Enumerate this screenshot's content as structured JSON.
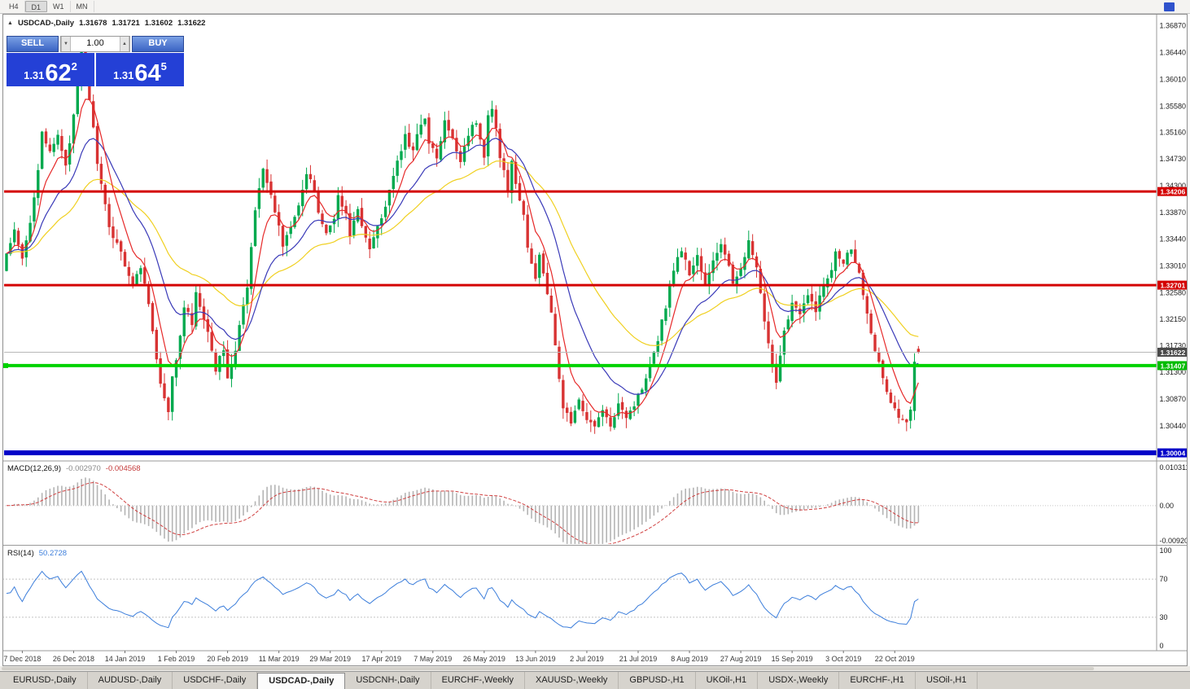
{
  "toolbar": {
    "timeframes": [
      "H4",
      "D1",
      "W1",
      "MN"
    ],
    "active_timeframe": "D1"
  },
  "chart_header": {
    "symbol_title": "USDCAD-,Daily",
    "open": "1.31678",
    "high": "1.31721",
    "low": "1.31602",
    "close": "1.31622"
  },
  "trade_panel": {
    "sell_label": "SELL",
    "buy_label": "BUY",
    "volume": "1.00",
    "sell_price": {
      "prefix": "1.31",
      "big": "62",
      "sup": "2"
    },
    "buy_price": {
      "prefix": "1.31",
      "big": "64",
      "sup": "5"
    }
  },
  "bottom_tabs": {
    "items": [
      "EURUSD-,Daily",
      "AUDUSD-,Daily",
      "USDCHF-,Daily",
      "USDCAD-,Daily",
      "USDCNH-,Daily",
      "EURCHF-,Weekly",
      "XAUUSD-,Weekly",
      "GBPUSD-,H1",
      "UKOil-,H1",
      "USDX-,Weekly",
      "EURCHF-,H1",
      "USOil-,H1"
    ],
    "active": "USDCAD-,Daily"
  },
  "chart_data": {
    "type": "candlestick",
    "symbol": "USDCAD",
    "period": "Daily",
    "current_ohlc": {
      "open": 1.31678,
      "high": 1.31721,
      "low": 1.31602,
      "close": 1.31622
    },
    "price_axis": {
      "min": 1.299,
      "max": 1.3705,
      "labels": [
        "1.36870",
        "1.36440",
        "1.36010",
        "1.35580",
        "1.35160",
        "1.34730",
        "1.34300",
        "1.33870",
        "1.33440",
        "1.33010",
        "1.32580",
        "1.32150",
        "1.31730",
        "1.31300",
        "1.30870",
        "1.30440"
      ]
    },
    "date_ticks": [
      {
        "i": 4,
        "label": "7 Dec 2018"
      },
      {
        "i": 17,
        "label": "26 Dec 2018"
      },
      {
        "i": 30,
        "label": "14 Jan 2019"
      },
      {
        "i": 43,
        "label": "1 Feb 2019"
      },
      {
        "i": 56,
        "label": "20 Feb 2019"
      },
      {
        "i": 69,
        "label": "11 Mar 2019"
      },
      {
        "i": 82,
        "label": "29 Mar 2019"
      },
      {
        "i": 95,
        "label": "17 Apr 2019"
      },
      {
        "i": 108,
        "label": "7 May 2019"
      },
      {
        "i": 121,
        "label": "26 May 2019"
      },
      {
        "i": 134,
        "label": "13 Jun 2019"
      },
      {
        "i": 147,
        "label": "2 Jul 2019"
      },
      {
        "i": 160,
        "label": "21 Jul 2019"
      },
      {
        "i": 173,
        "label": "8 Aug 2019"
      },
      {
        "i": 186,
        "label": "27 Aug 2019"
      },
      {
        "i": 199,
        "label": "15 Sep 2019"
      },
      {
        "i": 212,
        "label": "3 Oct 2019"
      },
      {
        "i": 225,
        "label": "22 Oct 2019"
      }
    ],
    "candle_count": 232,
    "price_path": [
      [
        0,
        1.332
      ],
      [
        2,
        1.3355
      ],
      [
        4,
        1.331
      ],
      [
        6,
        1.337
      ],
      [
        8,
        1.346
      ],
      [
        9,
        1.352
      ],
      [
        11,
        1.348
      ],
      [
        13,
        1.351
      ],
      [
        15,
        1.3465
      ],
      [
        17,
        1.354
      ],
      [
        19,
        1.3648
      ],
      [
        20,
        1.3615
      ],
      [
        21,
        1.357
      ],
      [
        22,
        1.352
      ],
      [
        23,
        1.347
      ],
      [
        24,
        1.343
      ],
      [
        26,
        1.336
      ],
      [
        28,
        1.334
      ],
      [
        30,
        1.3305
      ],
      [
        32,
        1.327
      ],
      [
        34,
        1.33
      ],
      [
        36,
        1.3245
      ],
      [
        37,
        1.3195
      ],
      [
        38,
        1.315
      ],
      [
        39,
        1.311
      ],
      [
        41,
        1.3062
      ],
      [
        42,
        1.312
      ],
      [
        44,
        1.3185
      ],
      [
        45,
        1.3235
      ],
      [
        47,
        1.321
      ],
      [
        48,
        1.3255
      ],
      [
        50,
        1.322
      ],
      [
        52,
        1.317
      ],
      [
        53,
        1.3135
      ],
      [
        55,
        1.3168
      ],
      [
        56,
        1.3122
      ],
      [
        58,
        1.3162
      ],
      [
        59,
        1.3205
      ],
      [
        61,
        1.3265
      ],
      [
        62,
        1.333
      ],
      [
        63,
        1.3395
      ],
      [
        65,
        1.3462
      ],
      [
        66,
        1.343
      ],
      [
        68,
        1.339
      ],
      [
        70,
        1.3335
      ],
      [
        72,
        1.3368
      ],
      [
        74,
        1.3402
      ],
      [
        76,
        1.3448
      ],
      [
        78,
        1.3422
      ],
      [
        79,
        1.3388
      ],
      [
        81,
        1.3352
      ],
      [
        83,
        1.3382
      ],
      [
        84,
        1.3412
      ],
      [
        86,
        1.3382
      ],
      [
        87,
        1.3352
      ],
      [
        89,
        1.3392
      ],
      [
        90,
        1.3362
      ],
      [
        92,
        1.3328
      ],
      [
        94,
        1.3368
      ],
      [
        96,
        1.3398
      ],
      [
        98,
        1.3448
      ],
      [
        100,
        1.3482
      ],
      [
        101,
        1.3512
      ],
      [
        103,
        1.3482
      ],
      [
        104,
        1.3512
      ],
      [
        106,
        1.3542
      ],
      [
        107,
        1.3502
      ],
      [
        109,
        1.3472
      ],
      [
        111,
        1.3532
      ],
      [
        113,
        1.3502
      ],
      [
        115,
        1.3472
      ],
      [
        117,
        1.3515
      ],
      [
        119,
        1.3532
      ],
      [
        120,
        1.3502
      ],
      [
        121,
        1.3475
      ],
      [
        122,
        1.3548
      ],
      [
        123,
        1.3558
      ],
      [
        124,
        1.3522
      ],
      [
        125,
        1.3475
      ],
      [
        127,
        1.3425
      ],
      [
        128,
        1.3465
      ],
      [
        129,
        1.3428
      ],
      [
        131,
        1.3382
      ],
      [
        132,
        1.333
      ],
      [
        134,
        1.328
      ],
      [
        135,
        1.3322
      ],
      [
        136,
        1.3292
      ],
      [
        138,
        1.3228
      ],
      [
        139,
        1.3168
      ],
      [
        140,
        1.3118
      ],
      [
        141,
        1.3075
      ],
      [
        143,
        1.305
      ],
      [
        145,
        1.3082
      ],
      [
        147,
        1.3058
      ],
      [
        149,
        1.304
      ],
      [
        151,
        1.3072
      ],
      [
        153,
        1.3038
      ],
      [
        155,
        1.3085
      ],
      [
        157,
        1.306
      ],
      [
        159,
        1.3078
      ],
      [
        161,
        1.3105
      ],
      [
        163,
        1.3145
      ],
      [
        165,
        1.3185
      ],
      [
        167,
        1.3238
      ],
      [
        169,
        1.3298
      ],
      [
        171,
        1.3328
      ],
      [
        173,
        1.3288
      ],
      [
        175,
        1.3318
      ],
      [
        177,
        1.3268
      ],
      [
        179,
        1.3308
      ],
      [
        181,
        1.3338
      ],
      [
        183,
        1.3298
      ],
      [
        184,
        1.3268
      ],
      [
        186,
        1.3302
      ],
      [
        188,
        1.3338
      ],
      [
        190,
        1.3298
      ],
      [
        192,
        1.3208
      ],
      [
        194,
        1.3138
      ],
      [
        195,
        1.3118
      ],
      [
        197,
        1.3198
      ],
      [
        199,
        1.3242
      ],
      [
        201,
        1.3222
      ],
      [
        203,
        1.3252
      ],
      [
        205,
        1.3232
      ],
      [
        207,
        1.3268
      ],
      [
        209,
        1.3298
      ],
      [
        210,
        1.3328
      ],
      [
        212,
        1.3308
      ],
      [
        214,
        1.3332
      ],
      [
        216,
        1.3288
      ],
      [
        218,
        1.3228
      ],
      [
        220,
        1.3168
      ],
      [
        222,
        1.3118
      ],
      [
        224,
        1.3082
      ],
      [
        226,
        1.3058
      ],
      [
        228,
        1.3046
      ],
      [
        229,
        1.3068
      ],
      [
        230,
        1.3148
      ],
      [
        231,
        1.31622
      ]
    ],
    "levels": [
      {
        "price": 1.34206,
        "label": "1.34206",
        "color": "#d40000",
        "badge": "#d40000",
        "width": 3
      },
      {
        "price": 1.32701,
        "label": "1.32701",
        "color": "#d40000",
        "badge": "#d40000",
        "width": 3
      },
      {
        "price": 1.31407,
        "label": "1.31407",
        "color": "#00d200",
        "badge": "#00bb00",
        "width": 4,
        "handle": true
      },
      {
        "price": 1.30004,
        "label": "1.30004",
        "color": "#0000c8",
        "badge": "#0000c8",
        "width": 6
      }
    ],
    "current_price": {
      "price": 1.31622,
      "label": "1.31622",
      "line_color": "#b8b8b8",
      "badge_color": "#4a4a4a"
    },
    "moving_averages": [
      {
        "name": "ma-slow-line",
        "period": 40,
        "color": "#f0d020"
      },
      {
        "name": "ma-mid-line",
        "period": 18,
        "color": "#3a3ab8"
      },
      {
        "name": "ma-fast-line",
        "period": 7,
        "color": "#e62929"
      }
    ],
    "candle_colors": {
      "bull": "#00a94e",
      "bear": "#d83333"
    },
    "macd": {
      "title": "MACD(12,26,9)",
      "fast": 12,
      "slow": 26,
      "signal": 9,
      "value_main": "-0.002970",
      "value_signal": "-0.004568",
      "axis_max": 0.010311,
      "axis_min": -0.009203,
      "axis_labels": [
        "0.010311",
        "0.00",
        "-0.009203"
      ],
      "histogram_color": "#b4b4b4",
      "signal_color": "#d04040"
    },
    "rsi": {
      "title": "RSI(14)",
      "period": 14,
      "value": "50.2728",
      "levels": [
        70,
        30
      ],
      "axis_values": [
        100,
        70,
        30,
        0
      ],
      "axis_labels": [
        "100",
        "70",
        "30",
        "0"
      ],
      "line_color": "#3c7edb"
    }
  }
}
